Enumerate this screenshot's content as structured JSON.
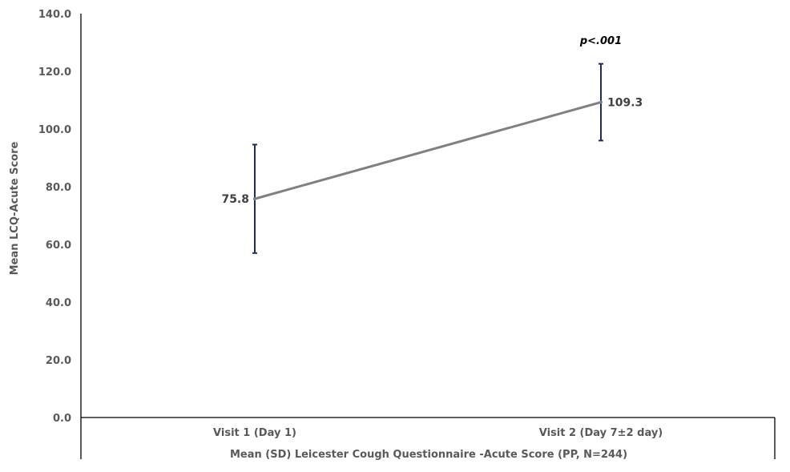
{
  "chart_data": {
    "type": "line",
    "title": "",
    "xlabel": "Mean (SD) Leicester Cough Questionnaire -Acute Score (PP, N=244)",
    "ylabel": "Mean LCQ-Acute Score",
    "categories": [
      "Visit 1 (Day 1)",
      "Visit 2 (Day 7±2 day)"
    ],
    "series": [
      {
        "values": [
          75.8,
          109.3
        ],
        "error_low": [
          57.0,
          96.0
        ],
        "error_high": [
          94.6,
          122.6
        ],
        "data_labels": [
          "75.8",
          "109.3"
        ]
      }
    ],
    "ylim": [
      0,
      140
    ],
    "yticks": [
      "0.0",
      "20.0",
      "40.0",
      "60.0",
      "80.0",
      "100.0",
      "120.0",
      "140.0"
    ],
    "annotations": [
      "p<.001"
    ],
    "grid": false,
    "legend": "none",
    "colors": {
      "line": "#808080",
      "error_bar": "#1F2D5C",
      "axis": "#000000",
      "text": "#595959"
    }
  }
}
